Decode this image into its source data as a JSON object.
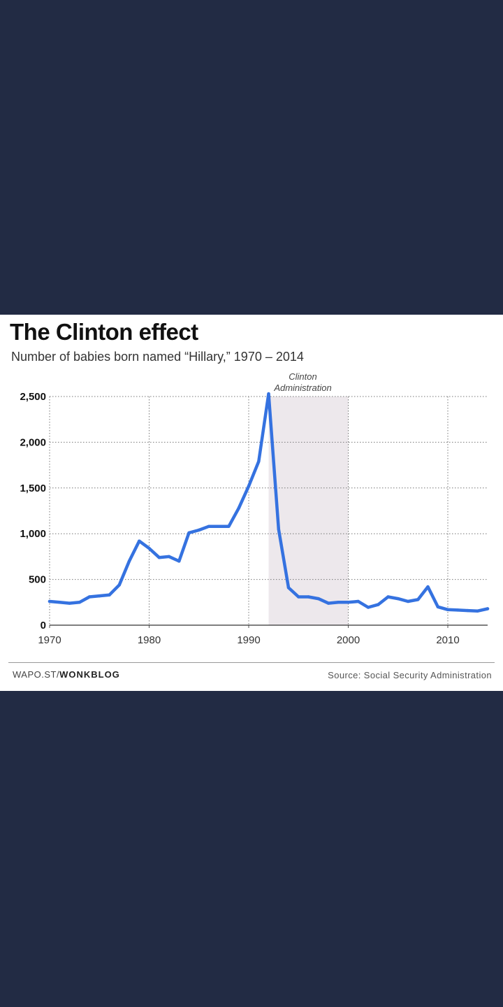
{
  "colors": {
    "background": "#222b44",
    "card": "#ffffff",
    "line": "#3572e0",
    "shade": "#ede8ec"
  },
  "footer": {
    "site": "WAPO.ST/",
    "section": "WONKBLOG",
    "source": "Source: Social Security Administration"
  },
  "chart_data": {
    "type": "line",
    "title": "The Clinton effect",
    "subtitle": "Number of babies born named “Hillary,” 1970 – 2014",
    "xlabel": "",
    "ylabel": "",
    "xlim": [
      1970,
      2014
    ],
    "ylim": [
      0,
      2500
    ],
    "grid": true,
    "x_ticks": [
      1970,
      1980,
      1990,
      2000,
      2010
    ],
    "y_ticks": [
      0,
      500,
      1000,
      1500,
      2000,
      2500
    ],
    "y_tick_labels": [
      "0",
      "500",
      "1,000",
      "1,500",
      "2,000",
      "2,500"
    ],
    "x_tick_labels": [
      "1970",
      "1980",
      "1990",
      "2000",
      "2010"
    ],
    "annotations": [
      {
        "text_lines": [
          "Clinton",
          "Administration"
        ],
        "x_start": 1992,
        "x_end": 2000
      }
    ],
    "series": [
      {
        "x": [
          1970,
          1971,
          1972,
          1973,
          1974,
          1975,
          1976,
          1977,
          1978,
          1979,
          1980,
          1981,
          1982,
          1983,
          1984,
          1985,
          1986,
          1987,
          1988,
          1989,
          1990,
          1991,
          1992,
          1993,
          1994,
          1995,
          1996,
          1997,
          1998,
          1999,
          2000,
          2001,
          2002,
          2003,
          2004,
          2005,
          2006,
          2007,
          2008,
          2009,
          2010,
          2011,
          2012,
          2013,
          2014
        ],
        "values": [
          260,
          250,
          240,
          250,
          310,
          320,
          330,
          440,
          700,
          920,
          840,
          740,
          750,
          700,
          1010,
          1040,
          1080,
          1080,
          1080,
          1280,
          1520,
          1790,
          2530,
          1050,
          410,
          310,
          310,
          290,
          240,
          250,
          250,
          260,
          195,
          225,
          310,
          290,
          260,
          280,
          420,
          200,
          170,
          165,
          160,
          155,
          180
        ]
      }
    ]
  }
}
